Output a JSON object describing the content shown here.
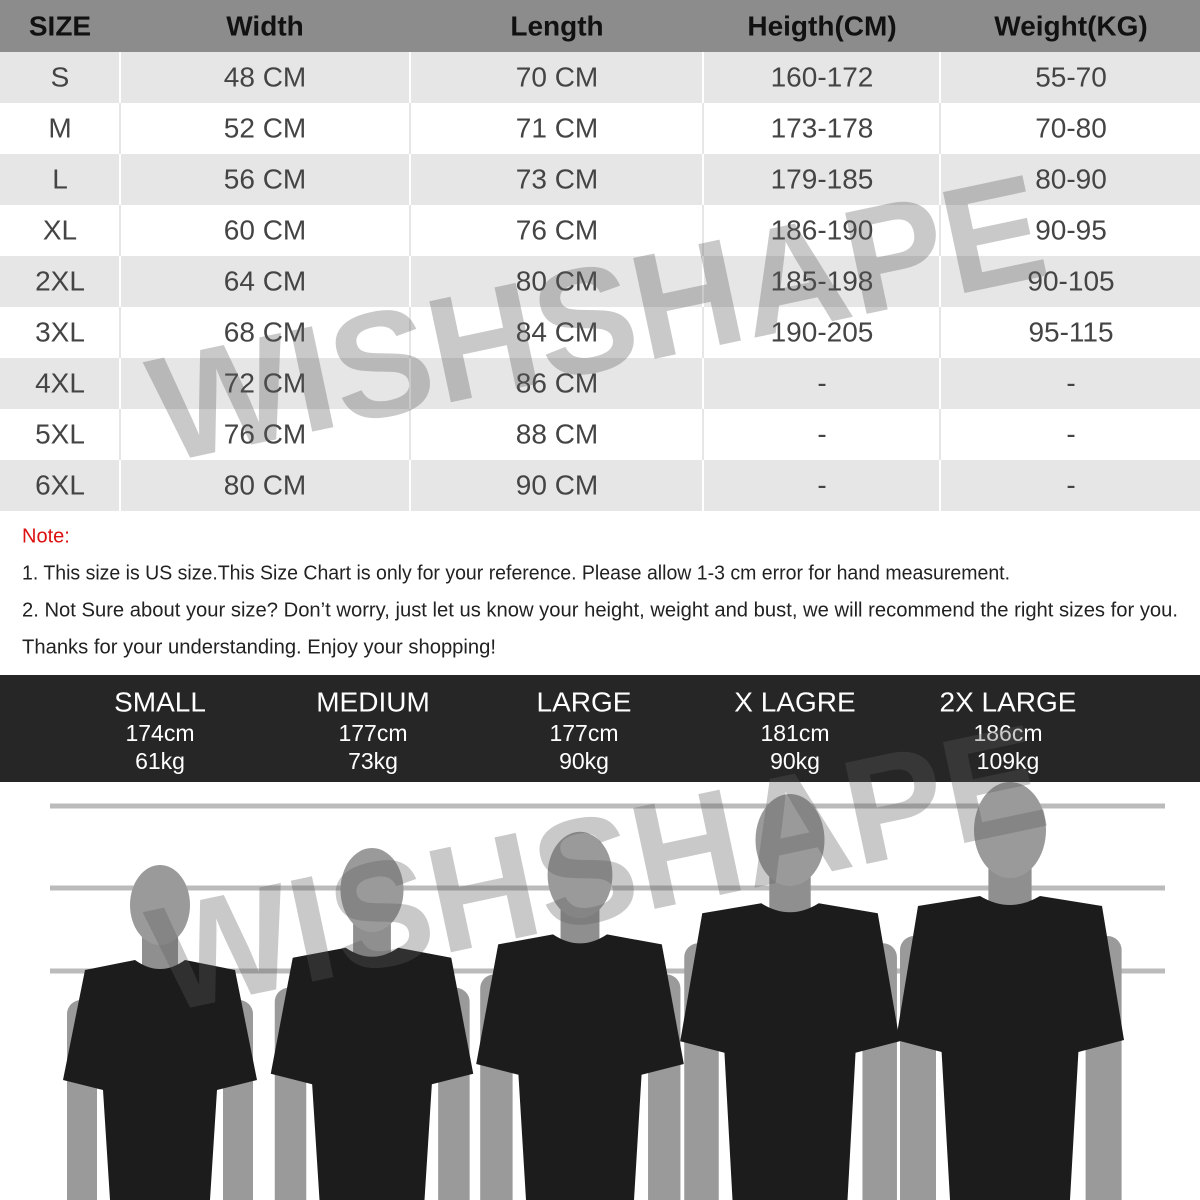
{
  "table": {
    "header": [
      "SIZE",
      "Width",
      "Length",
      "Heigth(CM)",
      "Weight(KG)"
    ],
    "rows": [
      [
        "S",
        "48 CM",
        "70 CM",
        "160-172",
        "55-70"
      ],
      [
        "M",
        "52 CM",
        "71 CM",
        "173-178",
        "70-80"
      ],
      [
        "L",
        "56 CM",
        "73 CM",
        "179-185",
        "80-90"
      ],
      [
        "XL",
        "60 CM",
        "76 CM",
        "186-190",
        "90-95"
      ],
      [
        "2XL",
        "64 CM",
        "80 CM",
        "185-198",
        "90-105"
      ],
      [
        "3XL",
        "68 CM",
        "84 CM",
        "190-205",
        "95-115"
      ],
      [
        "4XL",
        "72 CM",
        "86 CM",
        "-",
        "-"
      ],
      [
        "5XL",
        "76 CM",
        "88 CM",
        "-",
        "-"
      ],
      [
        "6XL",
        "80 CM",
        "90 CM",
        "-",
        "-"
      ]
    ]
  },
  "notes": {
    "label": "Note:",
    "lines": [
      "1. This size is US size.This Size Chart is only for your reference. Please allow 1-3 cm error for hand measurement.",
      "2. Not Sure about your size? Don’t worry, just let us know your height, weight and bust, we will recommend the right sizes for you.",
      "Thanks for your understanding. Enjoy your shopping!"
    ]
  },
  "models": [
    {
      "size": "SMALL",
      "height": "174cm",
      "weight": "61kg"
    },
    {
      "size": "MEDIUM",
      "height": "177cm",
      "weight": "73kg"
    },
    {
      "size": "LARGE",
      "height": "177cm",
      "weight": "90kg"
    },
    {
      "size": "X LAGRE",
      "height": "181cm",
      "weight": "90kg"
    },
    {
      "size": "2X LARGE",
      "height": "186cm",
      "weight": "109kg"
    }
  ],
  "watermark": "WISHSHAPE"
}
